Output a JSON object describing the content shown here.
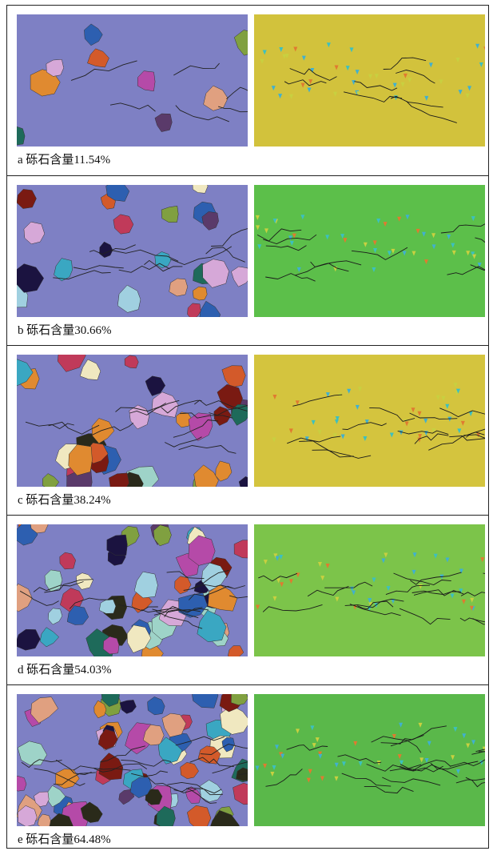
{
  "rows": [
    {
      "caption": "a 砾石含量11.54%"
    },
    {
      "caption": "b 砾石含量30.66%"
    },
    {
      "caption": "c 砾石含量38.24%"
    },
    {
      "caption": "d 砾石含量54.03%"
    },
    {
      "caption": "e 砾石含量64.48%"
    }
  ]
}
